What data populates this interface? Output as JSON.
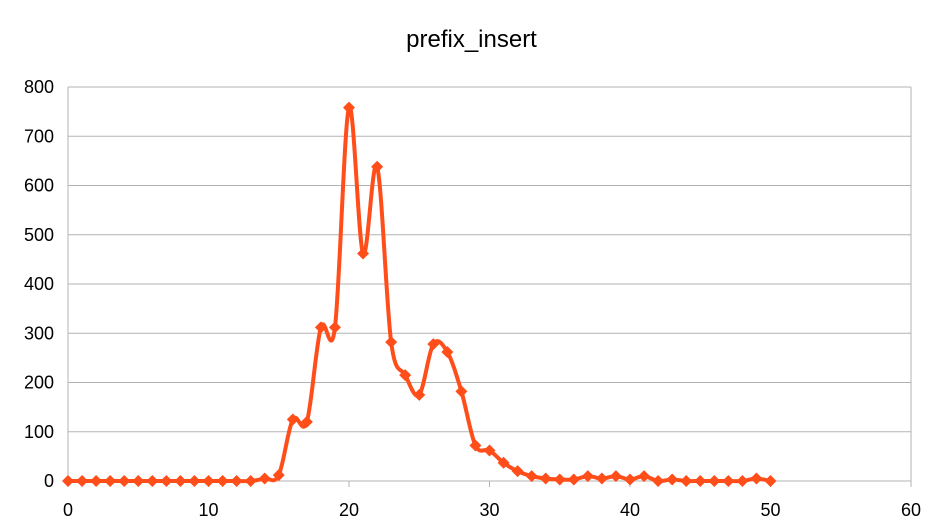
{
  "chart_data": {
    "type": "line",
    "title": "prefix_insert",
    "xlabel": "",
    "ylabel": "",
    "xlim": [
      0,
      60
    ],
    "ylim": [
      0,
      800
    ],
    "x_ticks": [
      0,
      10,
      20,
      30,
      40,
      50,
      60
    ],
    "y_ticks": [
      0,
      100,
      200,
      300,
      400,
      500,
      600,
      700,
      800
    ],
    "grid": "horizontal",
    "legend": "none",
    "series": [
      {
        "color": "#ff4e1a",
        "marker": "diamond",
        "smoothed": true,
        "x": [
          0,
          1,
          2,
          3,
          4,
          5,
          6,
          7,
          8,
          9,
          10,
          11,
          12,
          13,
          14,
          15,
          16,
          17,
          18,
          19,
          20,
          21,
          22,
          23,
          24,
          25,
          26,
          27,
          28,
          29,
          30,
          31,
          32,
          33,
          34,
          35,
          36,
          37,
          38,
          39,
          40,
          41,
          42,
          43,
          44,
          45,
          46,
          47,
          48,
          49,
          50
        ],
        "y": [
          0,
          0,
          0,
          0,
          0,
          0,
          0,
          0,
          0,
          0,
          0,
          0,
          0,
          0,
          5,
          12,
          125,
          120,
          312,
          312,
          758,
          462,
          638,
          282,
          215,
          175,
          278,
          262,
          182,
          72,
          62,
          37,
          20,
          10,
          5,
          3,
          3,
          10,
          5,
          10,
          3,
          10,
          0,
          3,
          0,
          0,
          0,
          0,
          0,
          5,
          0
        ]
      }
    ]
  }
}
